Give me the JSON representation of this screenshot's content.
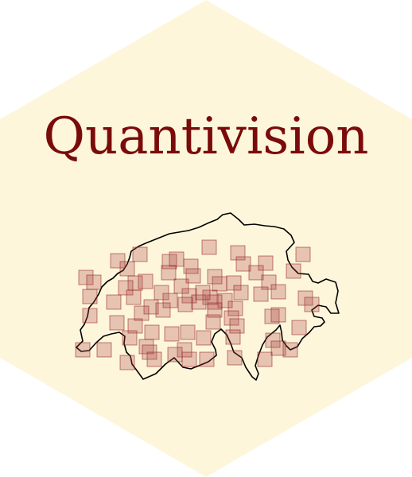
{
  "logo": {
    "title": "Quantivision",
    "colors": {
      "hexagon_fill": "#fef6db",
      "title_color": "#7a0b0b",
      "marker_fill": "#a84444",
      "marker_stroke": "#8f1f1f",
      "outline_color": "#000000"
    },
    "icon": "switzerland-map-icon"
  }
}
